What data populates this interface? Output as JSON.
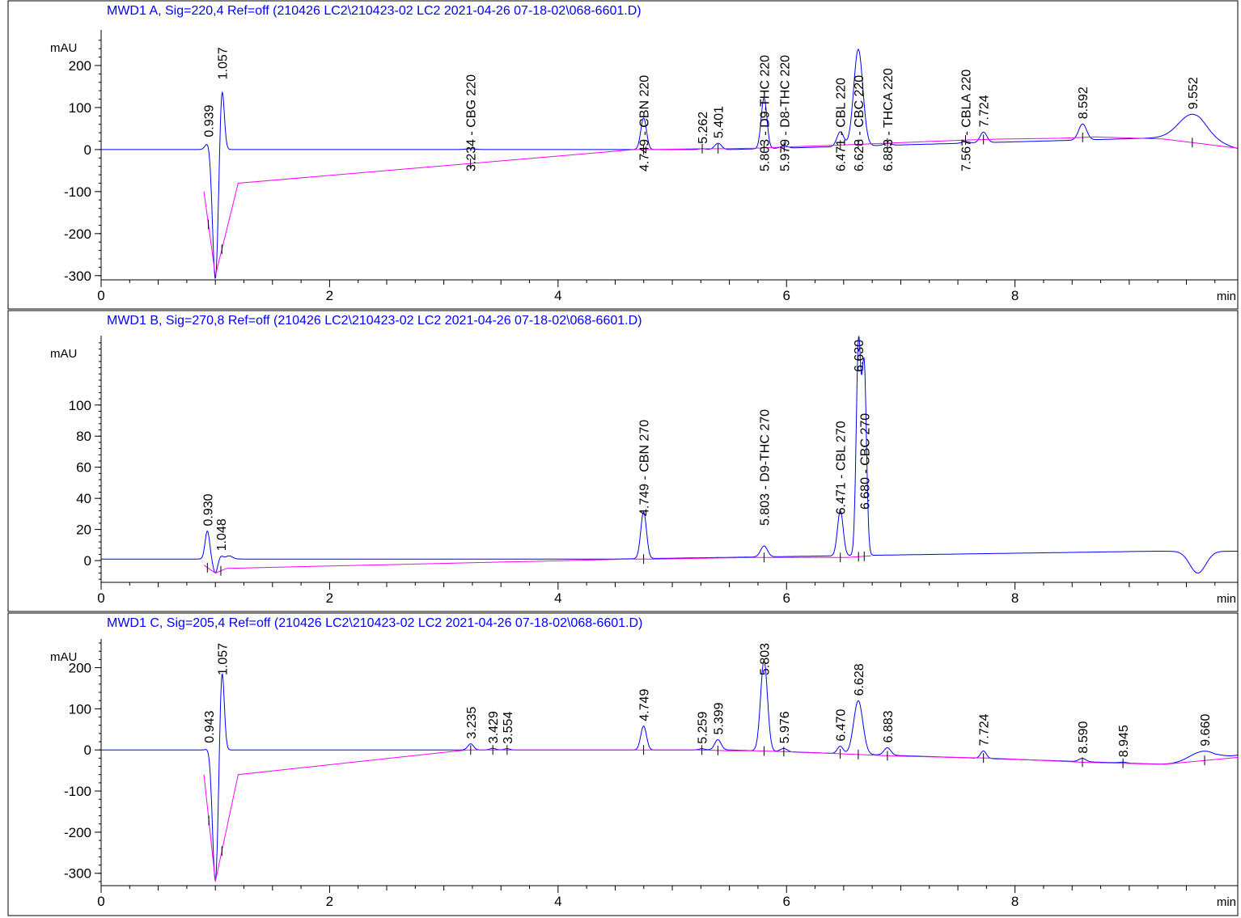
{
  "chart_data": [
    {
      "type": "line",
      "title": "MWD1 A, Sig=220,4 Ref=off (210426 LC2\\210423-02 LC2 2021-04-26 07-18-02\\068-6601.D)",
      "ylabel": "mAU",
      "xlabel": "min",
      "xlim": [
        0,
        9.95
      ],
      "ylim": [
        -310,
        275
      ],
      "x_ticks": [
        0,
        2,
        4,
        6,
        8
      ],
      "y_ticks": [
        -300,
        -200,
        -100,
        0,
        100,
        200
      ],
      "line_color": "#0000ff",
      "baseline_color": "#ff00ff",
      "baseline_points": [
        [
          0.9,
          -100
        ],
        [
          1.0,
          -300
        ],
        [
          1.2,
          -80
        ],
        [
          4.67,
          0
        ],
        [
          4.85,
          0
        ],
        [
          5.25,
          2
        ],
        [
          5.45,
          2
        ],
        [
          5.72,
          3
        ],
        [
          6.0,
          6
        ],
        [
          6.4,
          10
        ],
        [
          6.95,
          16
        ],
        [
          7.6,
          23
        ],
        [
          7.9,
          25
        ],
        [
          8.4,
          27
        ],
        [
          8.7,
          30
        ],
        [
          9.3,
          25
        ],
        [
          9.95,
          3
        ]
      ],
      "peaks": [
        {
          "rt": 0.939,
          "height": 18,
          "width": 0.025,
          "label": "0.939"
        },
        {
          "rt": 1.0,
          "height": -310,
          "width": 0.025,
          "label": ""
        },
        {
          "rt": 1.057,
          "height": 155,
          "width": 0.02,
          "label": "1.057"
        },
        {
          "rt": 3.234,
          "height": 2,
          "width": 0.04,
          "label": "3.234 -  CBG 220"
        },
        {
          "rt": 4.749,
          "height": 75,
          "width": 0.025,
          "label": "4.749 -  CBN 220"
        },
        {
          "rt": 5.262,
          "height": 2,
          "width": 0.03,
          "label": "5.262"
        },
        {
          "rt": 5.401,
          "height": 15,
          "width": 0.03,
          "label": "5.401"
        },
        {
          "rt": 5.803,
          "height": 120,
          "width": 0.025,
          "label": "5.803 -  D9-THC 220"
        },
        {
          "rt": 5.979,
          "height": 6,
          "width": 0.03,
          "label": "5.979 -  D8-THC 220"
        },
        {
          "rt": 6.471,
          "height": 35,
          "width": 0.03,
          "label": "6.471 -  CBL 220"
        },
        {
          "rt": 6.628,
          "height": 230,
          "width": 0.04,
          "label": "6.628 -  CBC 220"
        },
        {
          "rt": 6.883,
          "height": 5,
          "width": 0.03,
          "label": "6.883 -  THCA 220"
        },
        {
          "rt": 7.567,
          "height": 4,
          "width": 0.03,
          "label": "7.567 -  CBLA 220"
        },
        {
          "rt": 7.724,
          "height": 25,
          "width": 0.03,
          "label": "7.724"
        },
        {
          "rt": 8.592,
          "height": 38,
          "width": 0.035,
          "label": "8.592"
        },
        {
          "rt": 9.552,
          "height": 56,
          "width": 0.12,
          "label": "9.552"
        }
      ]
    },
    {
      "type": "line",
      "title": "MWD1 B, Sig=270,8 Ref=off (210426 LC2\\210423-02 LC2 2021-04-26 07-18-02\\068-6601.D)",
      "ylabel": "mAU",
      "xlabel": "min",
      "xlim": [
        0,
        9.95
      ],
      "ylim": [
        -14,
        142
      ],
      "x_ticks": [
        0,
        2,
        4,
        6,
        8
      ],
      "y_ticks": [
        0,
        20,
        40,
        60,
        80,
        100
      ],
      "line_color": "#0000ff",
      "baseline_color": "#ff00ff",
      "baseline_points": [
        [
          0.9,
          -3
        ],
        [
          1.0,
          -8
        ],
        [
          1.1,
          -5
        ],
        [
          4.65,
          1
        ],
        [
          4.87,
          1
        ],
        [
          5.72,
          2
        ],
        [
          5.9,
          2
        ],
        [
          6.4,
          2
        ],
        [
          6.52,
          2
        ],
        [
          6.74,
          3
        ]
      ],
      "peaks": [
        {
          "rt": 0.93,
          "height": 18,
          "width": 0.02,
          "label": "0.930"
        },
        {
          "rt": 1.0,
          "height": -9,
          "width": 0.02,
          "label": ""
        },
        {
          "rt": 1.048,
          "height": 2,
          "width": 0.02,
          "label": "1.048"
        },
        {
          "rt": 1.12,
          "height": 2,
          "width": 0.03,
          "label": ""
        },
        {
          "rt": 4.749,
          "height": 30,
          "width": 0.025,
          "label": "4.749 -  CBN 270"
        },
        {
          "rt": 5.803,
          "height": 7,
          "width": 0.03,
          "label": "5.803 -  D9-THC 270"
        },
        {
          "rt": 6.471,
          "height": 29,
          "width": 0.025,
          "label": "6.471 -  CBL 270"
        },
        {
          "rt": 6.63,
          "height": 135,
          "width": 0.02,
          "label": "6.630"
        },
        {
          "rt": 6.68,
          "height": 120,
          "width": 0.02,
          "label": "6.680 -  CBC 270"
        },
        {
          "rt": 9.6,
          "height": -14,
          "width": 0.07,
          "label": ""
        }
      ]
    },
    {
      "type": "line",
      "title": "MWD1 C, Sig=205,4 Ref=off (210426 LC2\\210423-02 LC2 2021-04-26 07-18-02\\068-6601.D)",
      "ylabel": "mAU",
      "xlabel": "min",
      "xlim": [
        0,
        9.95
      ],
      "ylim": [
        -330,
        260
      ],
      "x_ticks": [
        0,
        2,
        4,
        6,
        8
      ],
      "y_ticks": [
        -300,
        -200,
        -100,
        0,
        100,
        200
      ],
      "line_color": "#0000ff",
      "baseline_color": "#ff00ff",
      "baseline_points": [
        [
          0.9,
          -60
        ],
        [
          1.0,
          -320
        ],
        [
          1.2,
          -60
        ],
        [
          3.2,
          0
        ],
        [
          3.6,
          0
        ],
        [
          4.67,
          0
        ],
        [
          4.88,
          0
        ],
        [
          5.22,
          0
        ],
        [
          5.5,
          -2
        ],
        [
          5.73,
          -2
        ],
        [
          6.1,
          -5
        ],
        [
          6.95,
          -15
        ],
        [
          7.8,
          -20
        ],
        [
          8.6,
          -30
        ],
        [
          9.3,
          -35
        ],
        [
          9.95,
          -18
        ]
      ],
      "peaks": [
        {
          "rt": 0.943,
          "height": 5,
          "width": 0.02,
          "label": "0.943"
        },
        {
          "rt": 1.0,
          "height": -320,
          "width": 0.025,
          "label": ""
        },
        {
          "rt": 1.057,
          "height": 205,
          "width": 0.02,
          "label": "1.057"
        },
        {
          "rt": 3.235,
          "height": 15,
          "width": 0.025,
          "label": "3.235"
        },
        {
          "rt": 3.429,
          "height": 4,
          "width": 0.025,
          "label": "3.429"
        },
        {
          "rt": 3.554,
          "height": 3,
          "width": 0.025,
          "label": "3.554"
        },
        {
          "rt": 4.749,
          "height": 58,
          "width": 0.025,
          "label": "4.749"
        },
        {
          "rt": 5.259,
          "height": 3,
          "width": 0.025,
          "label": "5.259"
        },
        {
          "rt": 5.399,
          "height": 25,
          "width": 0.028,
          "label": "5.399"
        },
        {
          "rt": 5.803,
          "height": 220,
          "width": 0.03,
          "label": "5.803"
        },
        {
          "rt": 5.976,
          "height": 8,
          "width": 0.03,
          "label": "5.976"
        },
        {
          "rt": 6.47,
          "height": 18,
          "width": 0.025,
          "label": "6.470"
        },
        {
          "rt": 6.628,
          "height": 130,
          "width": 0.04,
          "label": "6.628"
        },
        {
          "rt": 6.883,
          "height": 18,
          "width": 0.03,
          "label": "6.883"
        },
        {
          "rt": 7.724,
          "height": 18,
          "width": 0.025,
          "label": "7.724"
        },
        {
          "rt": 8.59,
          "height": 8,
          "width": 0.03,
          "label": "8.590"
        },
        {
          "rt": 8.945,
          "height": 2,
          "width": 0.03,
          "label": "8.945"
        },
        {
          "rt": 9.66,
          "height": 32,
          "width": 0.13,
          "label": "9.660"
        }
      ]
    }
  ]
}
